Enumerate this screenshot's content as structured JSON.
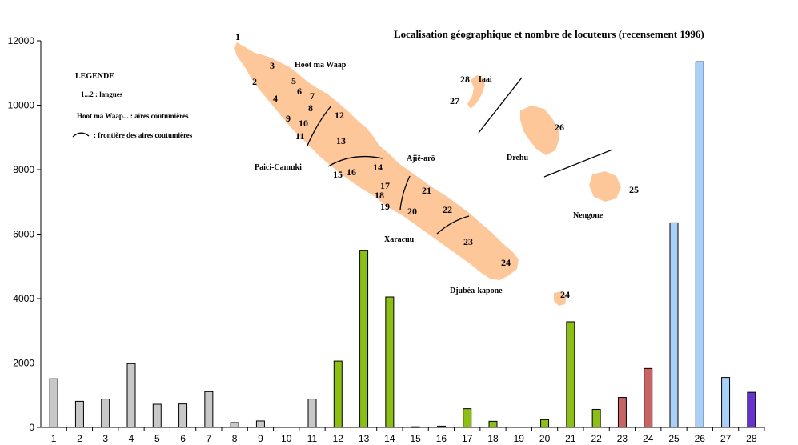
{
  "chart_data": {
    "type": "bar",
    "title": "Localisation géographique et nombre de locuteurs  (recensement 1996)",
    "categories": [
      "1",
      "2",
      "3",
      "4",
      "5",
      "6",
      "7",
      "8",
      "9",
      "10",
      "11",
      "12",
      "13",
      "14",
      "15",
      "16",
      "17",
      "18",
      "19",
      "20",
      "21",
      "22",
      "23",
      "24",
      "25",
      "26",
      "27",
      "28"
    ],
    "values": [
      1510,
      810,
      880,
      1980,
      720,
      730,
      1110,
      150,
      200,
      0,
      880,
      2060,
      5500,
      4050,
      20,
      40,
      580,
      190,
      0,
      240,
      3280,
      560,
      930,
      1830,
      6350,
      11350,
      1550,
      1090
    ],
    "bar_colors": [
      "#c8c8c8",
      "#c8c8c8",
      "#c8c8c8",
      "#c8c8c8",
      "#c8c8c8",
      "#c8c8c8",
      "#c8c8c8",
      "#c8c8c8",
      "#c8c8c8",
      "#c8c8c8",
      "#c8c8c8",
      "#8cbf14",
      "#8cbf14",
      "#8cbf14",
      "#8cbf14",
      "#8cbf14",
      "#8cbf14",
      "#8cbf14",
      "#8cbf14",
      "#8cbf14",
      "#8cbf14",
      "#8cbf14",
      "#c86464",
      "#c86464",
      "#a8d0f8",
      "#a8d0f8",
      "#a8d0f8",
      "#6633cc"
    ],
    "ylim": [
      0,
      12000
    ],
    "yticks": [
      0,
      2000,
      4000,
      6000,
      8000,
      10000,
      12000
    ],
    "xlabel": "",
    "ylabel": "",
    "grid": false
  },
  "legend": {
    "heading": "LEGENDE",
    "line1": "1...2 :  langues",
    "line2": "Hoot ma Waap... :  aires coutumières",
    "line3": ":  frontière des aires coutumières"
  },
  "map": {
    "island_color": "#fdc79a",
    "areas": [
      "Hoot ma Waap",
      "Paici-Camuki",
      "Ajië-arö",
      "Xaracuu",
      "Djubéa-kapone",
      "Iaai",
      "Drehu",
      "Nengone"
    ],
    "language_numbers": [
      "1",
      "2",
      "3",
      "4",
      "5",
      "6",
      "7",
      "8",
      "9",
      "10",
      "11",
      "12",
      "13",
      "14",
      "15",
      "16",
      "17",
      "18",
      "19",
      "20",
      "21",
      "22",
      "23",
      "24",
      "24",
      "25",
      "26",
      "27",
      "28"
    ]
  }
}
